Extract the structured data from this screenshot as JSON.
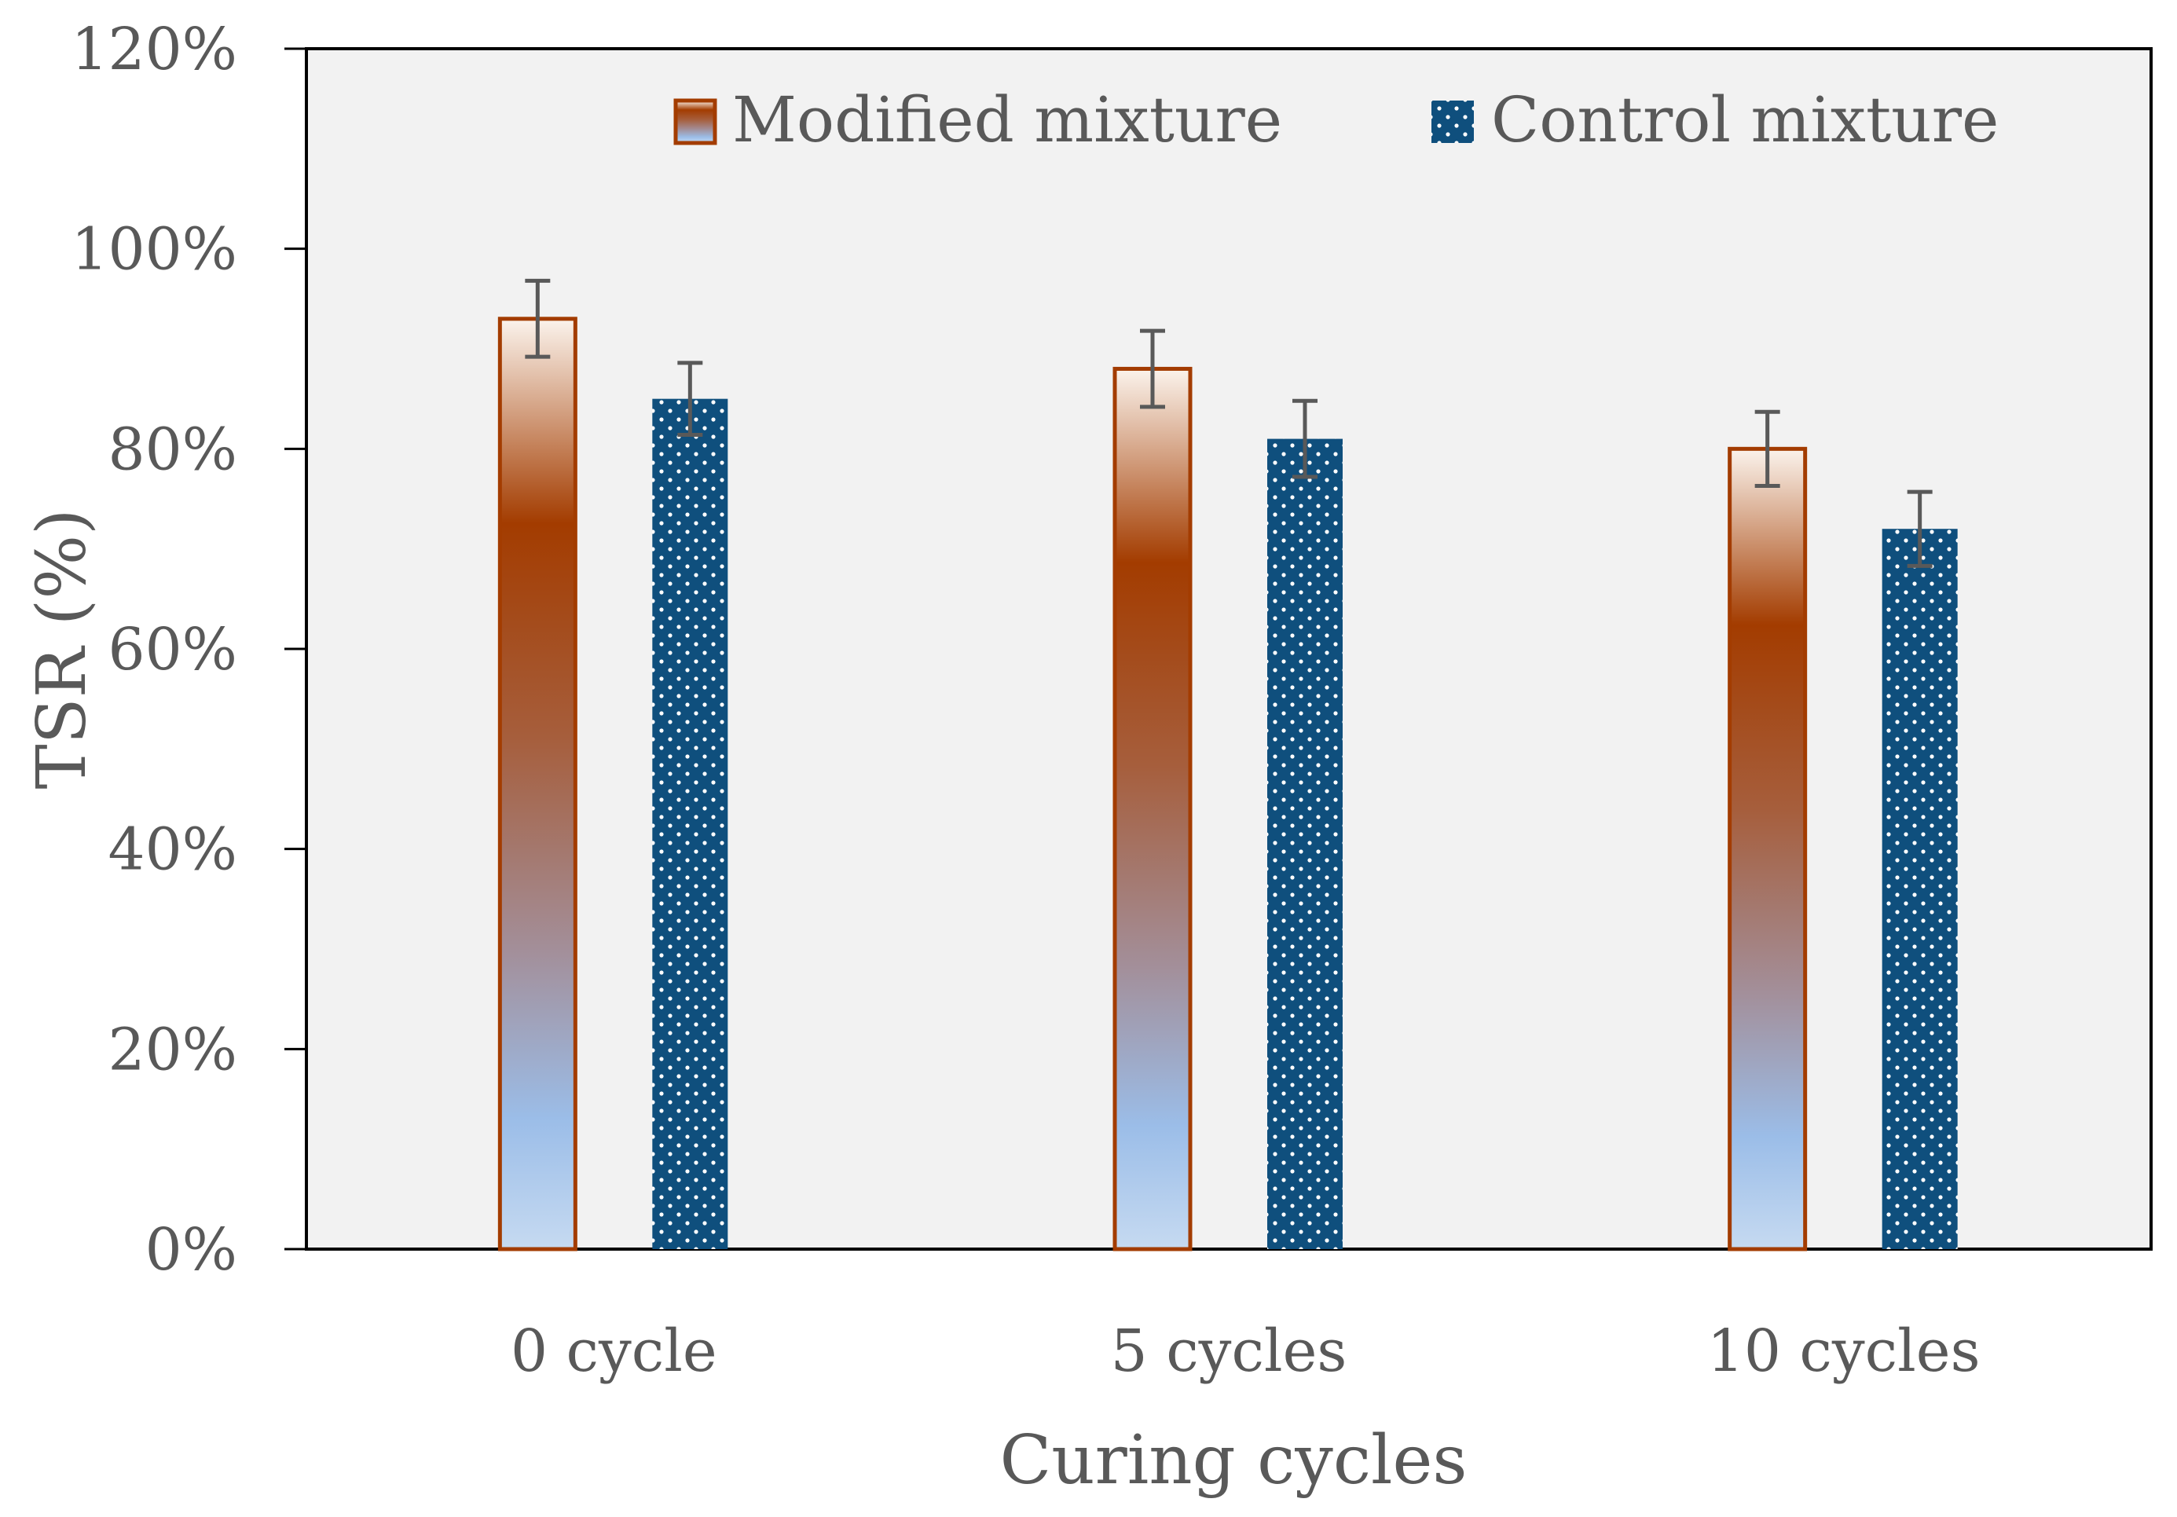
{
  "chart_data": {
    "type": "bar",
    "title": "",
    "xlabel": "Curing cycles",
    "ylabel": "TSR (%)",
    "ylim": [
      0,
      120
    ],
    "y_ticks": [
      0,
      20,
      40,
      60,
      80,
      100,
      120
    ],
    "y_tick_labels": [
      "0%",
      "20%",
      "40%",
      "60%",
      "80%",
      "100%",
      "120%"
    ],
    "categories": [
      "0 cycle",
      "5 cycles",
      "10 cycles"
    ],
    "series": [
      {
        "name": "Modified mixture",
        "values": [
          93,
          88,
          80
        ],
        "error": [
          3.8,
          3.8,
          3.7
        ],
        "fill": "gradient-brown-blue",
        "border": "#A33C00"
      },
      {
        "name": "Control mixture",
        "values": [
          85,
          81,
          72
        ],
        "error": [
          3.6,
          3.8,
          3.7
        ],
        "fill": "dotted",
        "color": "#0F4F7D"
      }
    ],
    "legend_position": "top",
    "grid": false,
    "plot_background": "#F2F2F2"
  }
}
